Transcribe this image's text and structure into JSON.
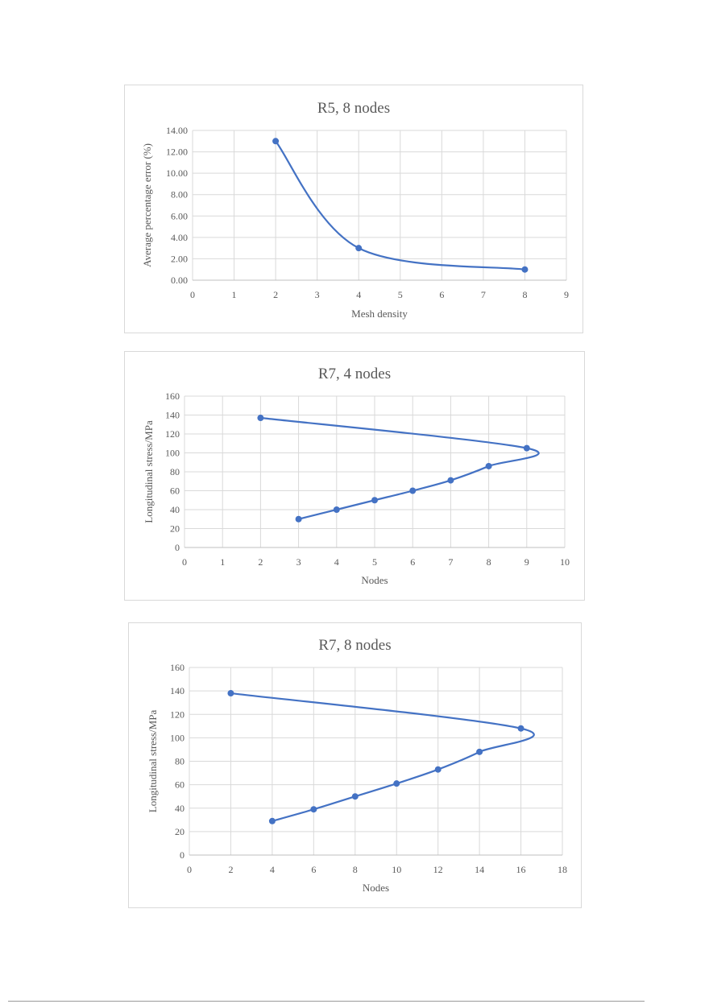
{
  "colors": {
    "series": "#4472C4",
    "grid": "#D9D9D9",
    "text": "#595959",
    "border": "#D9D9D9"
  },
  "chart_data": [
    {
      "type": "scatter",
      "title": "R5, 8 nodes",
      "xlabel": "Mesh density",
      "ylabel": "Average percentage error (%)",
      "xlim": [
        0,
        9
      ],
      "ylim": [
        0,
        14
      ],
      "xticks": [
        0,
        1,
        2,
        3,
        4,
        5,
        6,
        7,
        8,
        9
      ],
      "yticks": [
        0,
        2,
        4,
        6,
        8,
        10,
        12,
        14
      ],
      "xtick_labels": [
        "0",
        "1",
        "2",
        "3",
        "4",
        "5",
        "6",
        "7",
        "8",
        "9"
      ],
      "ytick_labels": [
        "0.00",
        "2.00",
        "4.00",
        "6.00",
        "8.00",
        "10.00",
        "12.00",
        "14.00"
      ],
      "grid": true,
      "smooth": true,
      "series": [
        {
          "name": "Average percentage error (%)",
          "points": [
            [
              2,
              13
            ],
            [
              4,
              3
            ],
            [
              8,
              1
            ]
          ]
        }
      ]
    },
    {
      "type": "scatter",
      "title": "R7, 4 nodes",
      "xlabel": "Nodes",
      "ylabel": "Longitudinal stress/MPa",
      "xlim": [
        0,
        10
      ],
      "ylim": [
        0,
        160
      ],
      "xticks": [
        0,
        1,
        2,
        3,
        4,
        5,
        6,
        7,
        8,
        9,
        10
      ],
      "yticks": [
        0,
        20,
        40,
        60,
        80,
        100,
        120,
        140,
        160
      ],
      "xtick_labels": [
        "0",
        "1",
        "2",
        "3",
        "4",
        "5",
        "6",
        "7",
        "8",
        "9",
        "10"
      ],
      "ytick_labels": [
        "0",
        "20",
        "40",
        "60",
        "80",
        "100",
        "120",
        "140",
        "160"
      ],
      "grid": true,
      "smooth": true,
      "series": [
        {
          "name": "Longitudinal stress/MPa",
          "points": [
            [
              3,
              30
            ],
            [
              4,
              40
            ],
            [
              5,
              50
            ],
            [
              6,
              60
            ],
            [
              7,
              71
            ],
            [
              8,
              86
            ],
            [
              9,
              105
            ],
            [
              2,
              137
            ]
          ]
        }
      ]
    },
    {
      "type": "scatter",
      "title": "R7, 8 nodes",
      "xlabel": "Nodes",
      "ylabel": "Longitudinal stress/MPa",
      "xlim": [
        0,
        18
      ],
      "ylim": [
        0,
        160
      ],
      "xticks": [
        0,
        2,
        4,
        6,
        8,
        10,
        12,
        14,
        16,
        18
      ],
      "yticks": [
        0,
        20,
        40,
        60,
        80,
        100,
        120,
        140,
        160
      ],
      "xtick_labels": [
        "0",
        "2",
        "4",
        "6",
        "8",
        "10",
        "12",
        "14",
        "16",
        "18"
      ],
      "ytick_labels": [
        "0",
        "20",
        "40",
        "60",
        "80",
        "100",
        "120",
        "140",
        "160"
      ],
      "grid": true,
      "smooth": true,
      "series": [
        {
          "name": "Longitudinal stress/MPa",
          "points": [
            [
              4,
              29
            ],
            [
              6,
              39
            ],
            [
              8,
              50
            ],
            [
              10,
              61
            ],
            [
              12,
              73
            ],
            [
              14,
              88
            ],
            [
              16,
              108
            ],
            [
              2,
              138
            ]
          ]
        }
      ]
    }
  ]
}
